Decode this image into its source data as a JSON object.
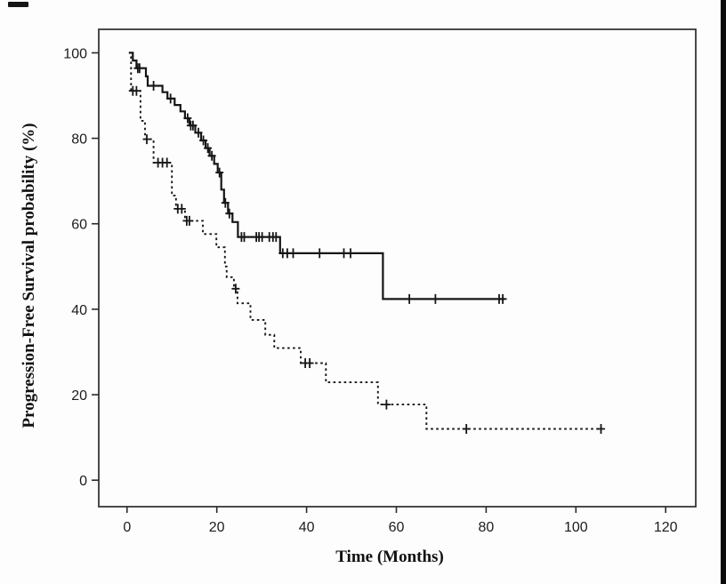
{
  "figure": {
    "background_color": "#fdfdfd",
    "axis_color": "#2b2b2b",
    "curve_color": "#161616",
    "text_color": "#111111"
  },
  "chart_data": {
    "type": "line",
    "subtype": "kaplan-meier-step",
    "title": "",
    "xlabel": "Time (Months)",
    "ylabel": "Progression-Free Survival probability (%)",
    "x_ticks": [
      0,
      20,
      40,
      60,
      80,
      100,
      120
    ],
    "y_ticks": [
      0,
      20,
      40,
      60,
      80,
      100
    ],
    "x_domain": [
      -6.3,
      126.7
    ],
    "y_domain": [
      -6.2,
      105.5
    ],
    "grid": false,
    "legend": "none",
    "censor_marker": "plus",
    "series": [
      {
        "name": "upper-group-solid",
        "style": "solid",
        "end_time": 84.2,
        "points": [
          [
            0.4,
            100
          ],
          [
            1.3,
            98.2
          ],
          [
            2.1,
            96.4
          ],
          [
            4.2,
            94.5
          ],
          [
            4.6,
            92.3
          ],
          [
            7.9,
            90.8
          ],
          [
            9.0,
            89.3
          ],
          [
            10.6,
            87.8
          ],
          [
            11.9,
            86.3
          ],
          [
            12.9,
            84.7
          ],
          [
            13.9,
            83.0
          ],
          [
            15.2,
            81.3
          ],
          [
            16.5,
            79.5
          ],
          [
            17.5,
            77.7
          ],
          [
            18.4,
            75.9
          ],
          [
            19.4,
            74.0
          ],
          [
            20.2,
            72.0
          ],
          [
            21.0,
            68.0
          ],
          [
            21.6,
            64.9
          ],
          [
            22.5,
            62.4
          ],
          [
            23.5,
            60.4
          ],
          [
            24.7,
            56.9
          ],
          [
            34.1,
            53.1
          ],
          [
            57.0,
            42.4
          ]
        ],
        "censors": [
          [
            2.4,
            96.4
          ],
          [
            2.8,
            96.4
          ],
          [
            5.9,
            92.3
          ],
          [
            9.7,
            89.3
          ],
          [
            13.5,
            84.7
          ],
          [
            14.2,
            83.0
          ],
          [
            14.7,
            83.0
          ],
          [
            15.9,
            81.3
          ],
          [
            17.0,
            79.5
          ],
          [
            18.0,
            77.7
          ],
          [
            18.9,
            75.9
          ],
          [
            20.6,
            72.0
          ],
          [
            21.9,
            64.9
          ],
          [
            22.8,
            62.4
          ],
          [
            25.5,
            56.9
          ],
          [
            26.1,
            56.9
          ],
          [
            28.8,
            56.9
          ],
          [
            29.4,
            56.9
          ],
          [
            30.1,
            56.9
          ],
          [
            31.7,
            56.9
          ],
          [
            32.5,
            56.9
          ],
          [
            33.2,
            56.9
          ],
          [
            34.7,
            53.1
          ],
          [
            35.7,
            53.1
          ],
          [
            37.0,
            53.1
          ],
          [
            42.9,
            53.1
          ],
          [
            48.3,
            53.1
          ],
          [
            49.8,
            53.1
          ],
          [
            62.9,
            42.4
          ],
          [
            68.7,
            42.4
          ],
          [
            82.9,
            42.4
          ],
          [
            83.7,
            42.4
          ]
        ]
      },
      {
        "name": "lower-group-dashed",
        "style": "dashed",
        "end_time": 105.9,
        "points": [
          [
            0.5,
            100
          ],
          [
            0.9,
            91.1
          ],
          [
            3.0,
            84.1
          ],
          [
            4.0,
            79.8
          ],
          [
            5.9,
            74.3
          ],
          [
            10.0,
            66.6
          ],
          [
            10.9,
            63.5
          ],
          [
            12.9,
            60.7
          ],
          [
            16.9,
            57.6
          ],
          [
            19.9,
            54.5
          ],
          [
            21.8,
            50.0
          ],
          [
            22.2,
            47.5
          ],
          [
            23.8,
            44.8
          ],
          [
            24.6,
            41.4
          ],
          [
            27.5,
            37.5
          ],
          [
            30.8,
            34.0
          ],
          [
            32.8,
            30.9
          ],
          [
            38.7,
            27.4
          ],
          [
            44.3,
            22.9
          ],
          [
            55.9,
            17.7
          ],
          [
            66.7,
            12.0
          ]
        ],
        "censors": [
          [
            1.3,
            91.1
          ],
          [
            2.1,
            91.1
          ],
          [
            4.4,
            79.8
          ],
          [
            6.9,
            74.3
          ],
          [
            7.9,
            74.3
          ],
          [
            8.9,
            74.3
          ],
          [
            11.3,
            63.5
          ],
          [
            12.2,
            63.5
          ],
          [
            13.3,
            60.7
          ],
          [
            13.9,
            60.7
          ],
          [
            24.2,
            44.8
          ],
          [
            39.7,
            27.4
          ],
          [
            40.7,
            27.4
          ],
          [
            57.8,
            17.7
          ],
          [
            75.6,
            12.0
          ],
          [
            105.6,
            12.0
          ]
        ]
      }
    ]
  }
}
